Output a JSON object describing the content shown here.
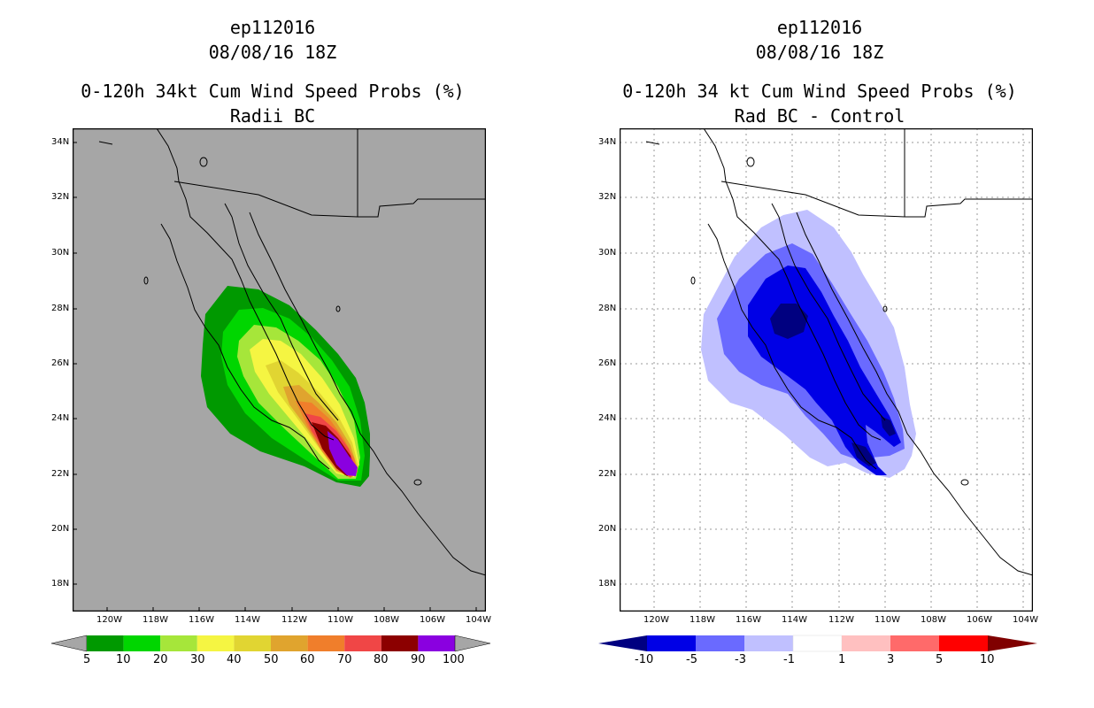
{
  "left": {
    "storm_id": "ep112016",
    "datetime": "08/08/16 18Z",
    "title": "0-120h 34kt Cum Wind Speed Probs (%)",
    "subtitle": "Radii BC",
    "background": "#a6a6a6",
    "colorbar": {
      "labels": [
        "5",
        "10",
        "20",
        "30",
        "40",
        "50",
        "60",
        "70",
        "80",
        "90",
        "100"
      ],
      "colors": [
        "#009900",
        "#00d600",
        "#a6e63a",
        "#f5f542",
        "#e1d532",
        "#e0a42e",
        "#f07e2b",
        "#f04646",
        "#8c0000",
        "#8a00e0"
      ],
      "end_color": "#a6a6a6"
    }
  },
  "right": {
    "storm_id": "ep112016",
    "datetime": "08/08/16 18Z",
    "title": "0-120h 34 kt Cum Wind Speed Probs (%)",
    "subtitle": "Rad BC - Control",
    "background": "#ffffff",
    "colorbar": {
      "labels": [
        "-10",
        "-5",
        "-3",
        "-1",
        "1",
        "3",
        "5",
        "10"
      ],
      "colors": [
        "#0000e6",
        "#6a6aff",
        "#c0c0ff",
        "#ffffff",
        "#ffc0c0",
        "#ff6a6a",
        "#ff0000"
      ],
      "end_left": "#000080",
      "end_right": "#800000"
    }
  },
  "axes": {
    "lat_labels": [
      "34N",
      "32N",
      "30N",
      "28N",
      "26N",
      "24N",
      "22N",
      "20N",
      "18N"
    ],
    "lon_labels": [
      "120W",
      "118W",
      "116W",
      "114W",
      "112W",
      "110W",
      "108W",
      "106W",
      "104W"
    ]
  }
}
